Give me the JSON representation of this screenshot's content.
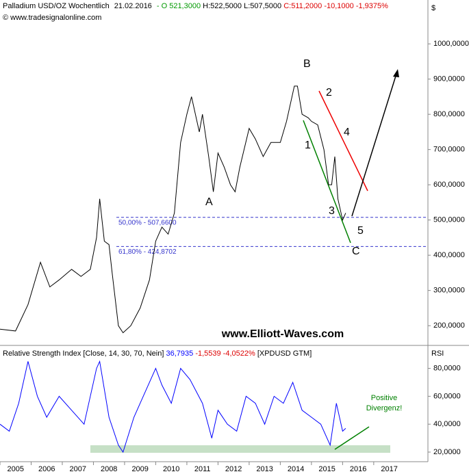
{
  "header": {
    "title": "Palladium USD/OZ Wochentlich",
    "date": "21.02.2016",
    "open": "- O 521,3000",
    "high_low": "H:522,5000 L:507,5000",
    "close": "C:511,2000 -10,1000 -1,9375%",
    "copyright": "© www.tradesignalonline.com",
    "currency": "$"
  },
  "chart_data": [
    {
      "type": "line",
      "color": "#000000",
      "x": [
        2005.0,
        2005.5,
        2005.9,
        2006.3,
        2006.6,
        2006.9,
        2007.3,
        2007.6,
        2007.9,
        2008.1,
        2008.2,
        2008.35,
        2008.5,
        2008.6,
        2008.8,
        2008.95,
        2009.2,
        2009.5,
        2009.8,
        2010.0,
        2010.2,
        2010.4,
        2010.6,
        2010.8,
        2011.0,
        2011.15,
        2011.4,
        2011.5,
        2011.7,
        2011.85,
        2012.0,
        2012.2,
        2012.4,
        2012.55,
        2012.7,
        2013.0,
        2013.2,
        2013.45,
        2013.7,
        2014.0,
        2014.2,
        2014.45,
        2014.55,
        2014.7,
        2014.9,
        2015.0,
        2015.2,
        2015.4,
        2015.55,
        2015.65,
        2015.75,
        2015.85,
        2016.0,
        2016.1
      ],
      "values": [
        190,
        185,
        260,
        380,
        310,
        330,
        360,
        340,
        360,
        450,
        560,
        440,
        430,
        350,
        200,
        180,
        200,
        250,
        330,
        440,
        480,
        460,
        520,
        720,
        800,
        850,
        750,
        800,
        680,
        580,
        690,
        650,
        600,
        580,
        650,
        760,
        730,
        680,
        720,
        720,
        780,
        880,
        880,
        800,
        790,
        780,
        770,
        700,
        600,
        600,
        680,
        560,
        500,
        520
      ],
      "xlim": [
        2005,
        2018.74
      ],
      "xticks": [
        2005,
        2006,
        2007,
        2008,
        2009,
        2010,
        2011,
        2012,
        2013,
        2014,
        2015,
        2016,
        2017
      ],
      "ylim": [
        144,
        1109
      ],
      "yticks": [
        {
          "value": 200,
          "label": "200,0000"
        },
        {
          "value": 300,
          "label": "300,0000"
        },
        {
          "value": 400,
          "label": "400,0000"
        },
        {
          "value": 500,
          "label": "500,0000"
        },
        {
          "value": 600,
          "label": "600,0000"
        },
        {
          "value": 700,
          "label": "700,0000"
        },
        {
          "value": 800,
          "label": "800,0000"
        },
        {
          "value": 900,
          "label": "900,0000"
        },
        {
          "value": 1000,
          "label": "1000,0000"
        }
      ],
      "fib_levels": [
        {
          "value": 507.66,
          "label": "50,00% - 507,6600"
        },
        {
          "value": 424.8702,
          "label": "61,80% - 424,8702"
        }
      ],
      "annotations": [
        "B",
        "2",
        "4",
        "1",
        "A",
        "3",
        "5",
        "C"
      ],
      "watermark": "www.Elliott-Waves.com"
    },
    {
      "type": "line",
      "color": "#0000ff",
      "title": "Relative Strength Index [Close, 14, 30, 70, Nein]",
      "last": "36,7935",
      "change": "-1,5539 -4,0522%",
      "symbol": "[XPDUSD GTM]",
      "axis_label": "RSI",
      "x": [
        2005.0,
        2005.3,
        2005.6,
        2005.9,
        2006.2,
        2006.5,
        2006.9,
        2007.3,
        2007.7,
        2008.1,
        2008.2,
        2008.5,
        2008.8,
        2008.95,
        2009.3,
        2009.6,
        2010.0,
        2010.2,
        2010.5,
        2010.8,
        2011.1,
        2011.5,
        2011.8,
        2012.0,
        2012.3,
        2012.6,
        2012.9,
        2013.2,
        2013.5,
        2013.8,
        2014.1,
        2014.4,
        2014.7,
        2015.0,
        2015.3,
        2015.6,
        2015.8,
        2016.0,
        2016.1
      ],
      "values": [
        40,
        35,
        55,
        85,
        60,
        45,
        60,
        50,
        40,
        80,
        85,
        45,
        25,
        20,
        45,
        60,
        80,
        68,
        55,
        80,
        72,
        55,
        30,
        50,
        40,
        35,
        60,
        55,
        40,
        60,
        55,
        70,
        50,
        45,
        40,
        25,
        55,
        35,
        37
      ],
      "xlim": [
        2005,
        2018.74
      ],
      "ylim": [
        14.6,
        94
      ],
      "yticks": [
        {
          "value": 20,
          "label": "20,0000"
        },
        {
          "value": 40,
          "label": "40,0000"
        },
        {
          "value": 60,
          "label": "60,0000"
        },
        {
          "value": 80,
          "label": "80,0000"
        }
      ],
      "annotations": [
        "Positive",
        "Divergenz!"
      ]
    }
  ]
}
